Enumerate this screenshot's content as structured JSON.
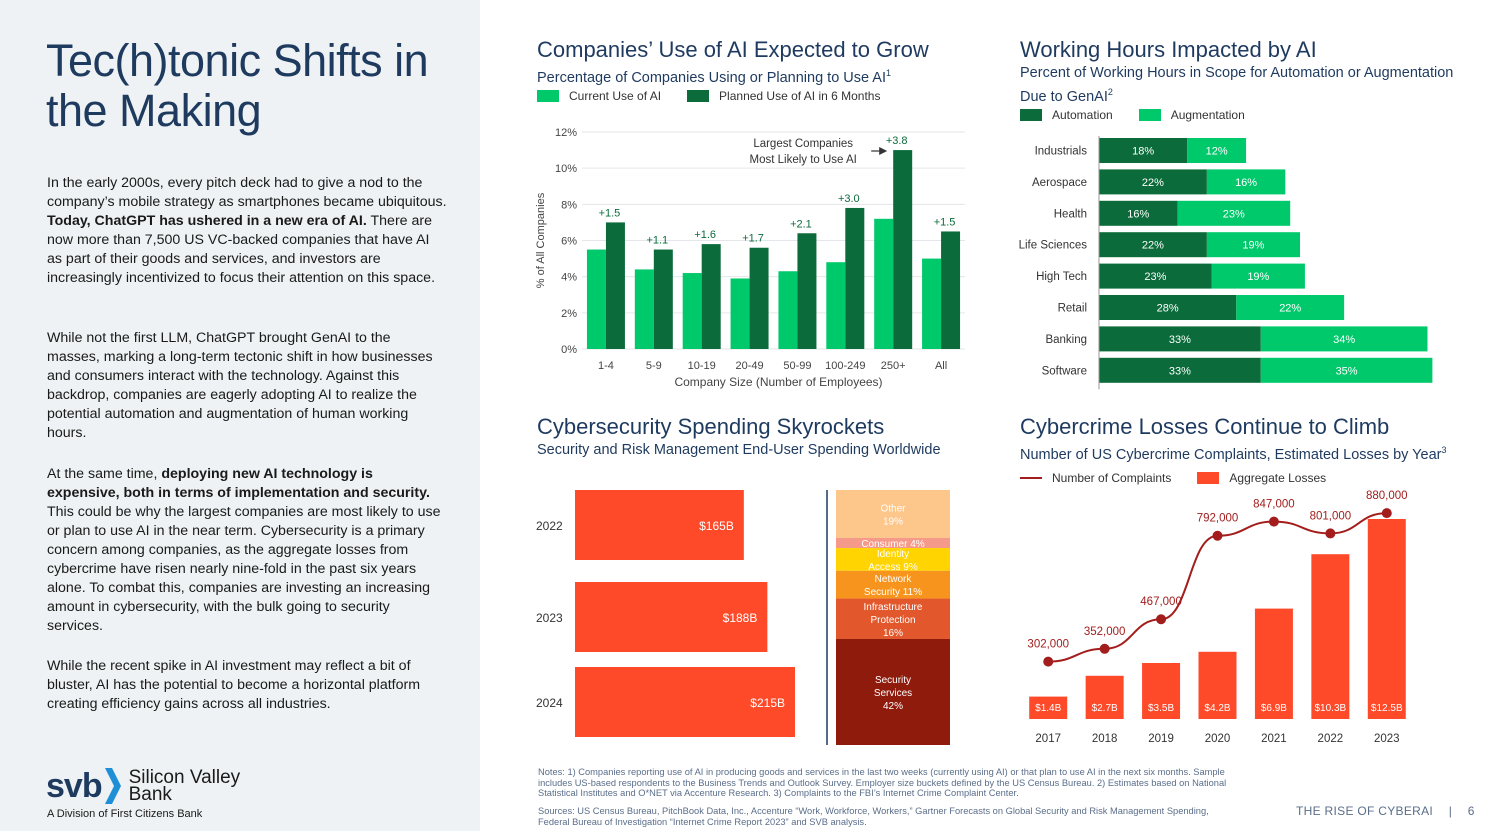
{
  "left": {
    "title": "Tec(h)tonic Shifts in the Making",
    "p1_a": "In the early 2000s, every pitch deck had to give a nod to the company’s mobile strategy as smartphones became ubiquitous. ",
    "p1_b": "Today, ChatGPT has ushered in a new era of AI.",
    "p1_c": " There are now more than 7,500 US VC-backed companies that have AI as part of their goods and services, and investors are increasingly incentivized to focus their attention on this space.",
    "p2": "While not the first LLM, ChatGPT brought GenAI to the masses, marking a long-term tectonic shift in how businesses and consumers interact with the technology. Against this backdrop, companies are eagerly adopting AI to realize the potential automation and augmentation of human working hours.",
    "p3_a": "At the same time, ",
    "p3_b": "deploying new AI technology is expensive, both in terms of implementation and security.",
    "p3_c": " This could be why the largest companies are most likely to use or plan to use AI in the near term. Cybersecurity is a primary concern among companies, as the aggregate losses from cybercrime have risen nearly nine-fold in the past six years alone. To combat this, companies are investing an increasing amount in cybersecurity, with the bulk going to security services.",
    "p4": "While the recent spike in AI investment may reflect a bit of bluster, AI has the potential to become a horizontal platform creating efficiency gains across all industries."
  },
  "logo": {
    "mark": "svb",
    "name_line1": "Silicon Valley",
    "name_line2": "Bank",
    "subtitle": "A Division of First Citizens Bank"
  },
  "colors": {
    "navy": "#1e3a5f",
    "light_green": "#00c96b",
    "dark_green": "#0b6b3a",
    "red": "#ff4a2a",
    "dark_red": "#a31d1d"
  },
  "chart1": {
    "title": "Companies’ Use of AI Expected to Grow",
    "subtitle": "Percentage of Companies Using or Planning to Use AI",
    "subtitle_sup": "1",
    "legend": [
      "Current Use of AI",
      "Planned Use of AI in 6 Months"
    ],
    "annotation_line1": "Largest Companies",
    "annotation_line2": "Most Likely to Use AI"
  },
  "chart2": {
    "title": "Working Hours Impacted by AI",
    "subtitle_line1": "Percent of Working Hours in Scope for Automation or Augmentation",
    "subtitle_line2": "Due to GenAI",
    "subtitle_sup": "2",
    "legend": [
      "Automation",
      "Augmentation"
    ]
  },
  "chart3": {
    "title": "Cybersecurity Spending Skyrockets",
    "subtitle": "Security and Risk Management End-User Spending Worldwide"
  },
  "chart4": {
    "title": "Cybercrime Losses Continue to Climb",
    "subtitle": "Number of US Cybercrime Complaints, Estimated Losses by Year",
    "subtitle_sup": "3",
    "legend": [
      "Number of Complaints",
      "Aggregate Losses"
    ]
  },
  "chart_data": [
    {
      "type": "bar",
      "categories": [
        "1-4",
        "5-9",
        "10-19",
        "20-49",
        "50-99",
        "100-249",
        "250+",
        "All"
      ],
      "series": [
        {
          "name": "Current Use of AI",
          "values": [
            5.5,
            4.4,
            4.2,
            3.9,
            4.3,
            4.8,
            7.2,
            5.0
          ]
        },
        {
          "name": "Planned Use of AI in 6 Months",
          "values": [
            7.0,
            5.5,
            5.8,
            5.6,
            6.4,
            7.8,
            11.0,
            6.5
          ]
        }
      ],
      "data_labels": [
        "+1.5",
        "+1.1",
        "+1.6",
        "+1.7",
        "+2.1",
        "+3.0",
        "+3.8",
        "+1.5"
      ],
      "xlabel": "Company Size (Number of Employees)",
      "ylabel": "% of All Companies",
      "yticks": [
        "0%",
        "2%",
        "4%",
        "6%",
        "8%",
        "10%",
        "12%"
      ],
      "ylim": [
        0,
        12
      ],
      "grid": true
    },
    {
      "type": "bar",
      "orientation": "horizontal-stacked",
      "categories": [
        "Industrials",
        "Aerospace",
        "Health",
        "Life Sciences",
        "High Tech",
        "Retail",
        "Banking",
        "Software"
      ],
      "series": [
        {
          "name": "Automation",
          "values": [
            18,
            22,
            16,
            22,
            23,
            28,
            33,
            33
          ],
          "labels": [
            "18%",
            "22%",
            "16%",
            "22%",
            "23%",
            "28%",
            "33%",
            "33%"
          ]
        },
        {
          "name": "Augmentation",
          "values": [
            12,
            16,
            23,
            19,
            19,
            22,
            34,
            35
          ],
          "labels": [
            "12%",
            "16%",
            "23%",
            "19%",
            "19%",
            "22%",
            "34%",
            "35%"
          ]
        }
      ],
      "xlim": [
        0,
        72
      ]
    },
    {
      "type": "bar",
      "orientation": "horizontal",
      "categories": [
        "2022",
        "2023",
        "2024"
      ],
      "values": [
        165,
        188,
        215
      ],
      "labels": [
        "$165B",
        "$188B",
        "$215B"
      ],
      "xlim": [
        0,
        215
      ],
      "breakdown": {
        "type": "stacked-column",
        "segments": [
          {
            "label_lines": [
              "Other",
              "19%"
            ],
            "value": 19,
            "color": "#fdc68a"
          },
          {
            "label_lines": [
              "Consumer 4%"
            ],
            "value": 4,
            "color": "#f59a8a"
          },
          {
            "label_lines": [
              "Identity",
              "Access 9%"
            ],
            "value": 9,
            "color": "#ffd400"
          },
          {
            "label_lines": [
              "Network",
              "Security 11%"
            ],
            "value": 11,
            "color": "#f7941d"
          },
          {
            "label_lines": [
              "Infrastructure",
              "Protection",
              "16%"
            ],
            "value": 16,
            "color": "#e2572b"
          },
          {
            "label_lines": [
              "Security",
              "Services",
              "42%"
            ],
            "value": 42,
            "color": "#8e1b0c"
          }
        ]
      }
    },
    {
      "type": "bar",
      "categories": [
        "2017",
        "2018",
        "2019",
        "2020",
        "2021",
        "2022",
        "2023"
      ],
      "series": [
        {
          "name": "Aggregate Losses",
          "values": [
            1.4,
            2.7,
            3.5,
            4.2,
            6.9,
            10.3,
            12.5
          ],
          "labels": [
            "$1.4B",
            "$2.7B",
            "$3.5B",
            "$4.2B",
            "$6.9B",
            "$10.3B",
            "$12.5B"
          ]
        },
        {
          "name": "Number of Complaints",
          "type": "line",
          "values": [
            302000,
            352000,
            467000,
            792000,
            847000,
            801000,
            880000
          ],
          "labels": [
            "302,000",
            "352,000",
            "467,000",
            "792,000",
            "847,000",
            "801,000",
            "880,000"
          ]
        }
      ],
      "ylim_losses": [
        0,
        12.5
      ],
      "ylim_complaints": [
        0,
        950000
      ]
    }
  ],
  "notes": "Notes: 1) Companies reporting use of AI in producing goods and services in the last two weeks (currently using AI) or that plan to use AI in the next six months. Sample includes US-based respondents to the Business Trends and Outlook Survey. Employer size buckets defined by the US Census Bureau. 2) Estimates based on National Statistical Institutes and O*NET via Accenture Research. 3) Complaints to the FBI’s Internet Crime Complaint Center.",
  "sources": "Sources: US Census Bureau, PitchBook Data, Inc., Accenture “Work, Workforce, Workers,” Gartner Forecasts on Global Security and Risk Management Spending, Federal Bureau of Investigation “Internet Crime Report 2023” and SVB analysis.",
  "footer": {
    "report": "THE RISE OF CYBERAI",
    "separator": "|",
    "page": "6"
  }
}
